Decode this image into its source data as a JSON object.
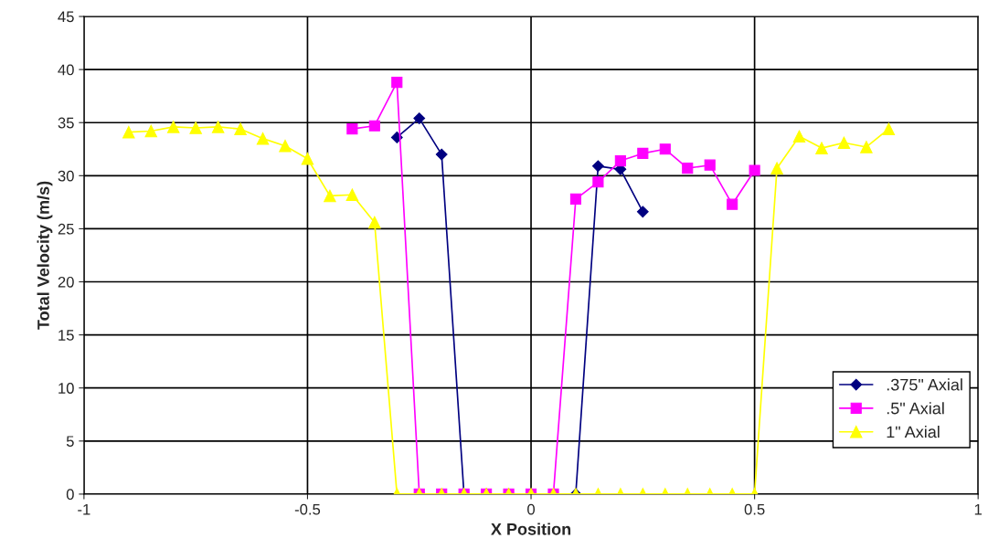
{
  "chart_data": {
    "type": "line",
    "xlabel": "X Position",
    "ylabel": "Total Velocity (m/s)",
    "xlim": [
      -1,
      1
    ],
    "xticks": [
      -1,
      -0.5,
      0,
      0.5,
      1
    ],
    "ylim": [
      0,
      45
    ],
    "yticks": [
      0,
      5,
      10,
      15,
      20,
      25,
      30,
      35,
      40,
      45
    ],
    "grid": true,
    "legend": "right",
    "series": [
      {
        "name": ".375\" Axial",
        "color": "#000080",
        "marker": "diamond",
        "x": [
          -0.3,
          -0.25,
          -0.2,
          -0.15,
          -0.1,
          -0.05,
          0,
          0.05,
          0.1,
          0.15,
          0.2,
          0.25
        ],
        "values": [
          33.6,
          35.4,
          32,
          0,
          0,
          0,
          0,
          0,
          0,
          30.9,
          30.6,
          26.6
        ]
      },
      {
        "name": ".5\" Axial",
        "color": "#ff00ff",
        "marker": "square",
        "x": [
          -0.4,
          -0.35,
          -0.3,
          -0.25,
          -0.2,
          -0.15,
          -0.1,
          -0.05,
          0,
          0.05,
          0.1,
          0.15,
          0.2,
          0.25,
          0.3,
          0.35,
          0.4,
          0.45,
          0.5
        ],
        "values": [
          34.4,
          34.7,
          38.8,
          0,
          0,
          0,
          0,
          0,
          0,
          0,
          27.8,
          29.4,
          31.4,
          32.1,
          32.5,
          30.7,
          31.0,
          27.3,
          30.5
        ]
      },
      {
        "name": "1\" Axial",
        "color": "#ffff00",
        "marker": "triangle",
        "x": [
          -0.9,
          -0.85,
          -0.8,
          -0.75,
          -0.7,
          -0.65,
          -0.6,
          -0.55,
          -0.5,
          -0.45,
          -0.4,
          -0.35,
          -0.3,
          -0.25,
          -0.2,
          -0.15,
          -0.1,
          -0.05,
          0,
          0.05,
          0.1,
          0.15,
          0.2,
          0.25,
          0.3,
          0.35,
          0.4,
          0.45,
          0.5,
          0.55,
          0.6,
          0.65,
          0.7,
          0.75,
          0.8
        ],
        "values": [
          34.1,
          34.2,
          34.6,
          34.5,
          34.6,
          34.4,
          33.5,
          32.8,
          31.6,
          28.1,
          28.2,
          25.6,
          0,
          0,
          0,
          0,
          0,
          0,
          0,
          0,
          0,
          0,
          0,
          0,
          0,
          0,
          0,
          0,
          0,
          30.7,
          33.7,
          32.6,
          33.1,
          32.7,
          34.4
        ]
      }
    ]
  }
}
